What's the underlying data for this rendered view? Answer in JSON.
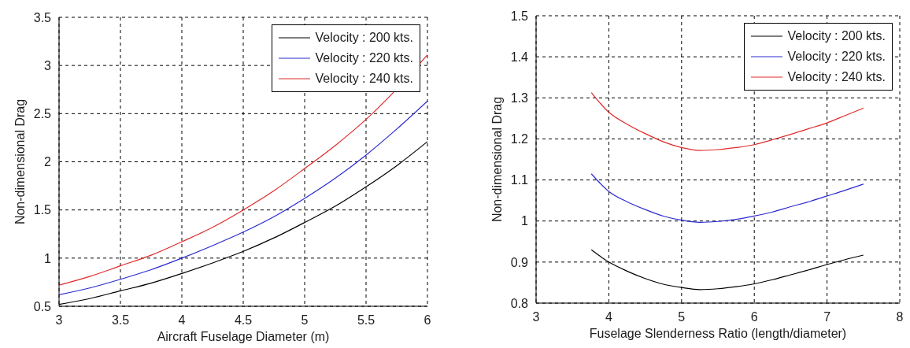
{
  "chart_data": [
    {
      "type": "line",
      "xlabel": "Aircraft Fuselage Diameter (m)",
      "ylabel": "Non-dimensional Drag",
      "x": [
        3,
        3.25,
        3.5,
        3.75,
        4,
        4.25,
        4.5,
        4.75,
        5,
        5.25,
        5.5,
        5.75,
        6
      ],
      "series": [
        {
          "name": "Velocity : 200 kts.",
          "color": "#000000",
          "values": [
            0.52,
            0.58,
            0.66,
            0.74,
            0.84,
            0.95,
            1.07,
            1.21,
            1.37,
            1.54,
            1.74,
            1.96,
            2.21
          ]
        },
        {
          "name": "Velocity : 220 kts.",
          "color": "#2a2ad0",
          "values": [
            0.62,
            0.69,
            0.78,
            0.88,
            1.0,
            1.13,
            1.27,
            1.43,
            1.62,
            1.83,
            2.07,
            2.34,
            2.63
          ]
        },
        {
          "name": "Velocity : 240 kts.",
          "color": "#e02a2a",
          "x": [
            3,
            3.25,
            3.5,
            3.75,
            4,
            4.25,
            4.5,
            4.75,
            5,
            5.25,
            5.5,
            5.7,
            6
          ],
          "values": [
            0.72,
            0.81,
            0.92,
            1.03,
            1.17,
            1.32,
            1.5,
            1.7,
            1.93,
            2.17,
            2.44,
            2.69,
            3.11
          ]
        }
      ],
      "xlim": [
        3,
        6
      ],
      "xticks": [
        3,
        3.5,
        4,
        4.5,
        5,
        5.5,
        6
      ],
      "ylim": [
        0.5,
        3.5
      ],
      "yticks": [
        0.5,
        1,
        1.5,
        2,
        2.5,
        3,
        3.5
      ],
      "grid": true,
      "legend": "top right"
    },
    {
      "type": "line",
      "xlabel": "Fuselage Slenderness Ratio (length/diameter)",
      "ylabel": "Non-dimensional Drag",
      "x": [
        3.76,
        4,
        4.25,
        4.5,
        4.75,
        5,
        5.25,
        5.5,
        5.75,
        6,
        6.25,
        6.5,
        6.75,
        7,
        7.25,
        7.5
      ],
      "series": [
        {
          "name": "Velocity : 200 kts.",
          "color": "#000000",
          "values": [
            0.93,
            0.9,
            0.878,
            0.86,
            0.846,
            0.838,
            0.833,
            0.835,
            0.84,
            0.847,
            0.857,
            0.869,
            0.881,
            0.894,
            0.906,
            0.917
          ]
        },
        {
          "name": "Velocity : 220 kts.",
          "color": "#2a2ad0",
          "values": [
            1.115,
            1.072,
            1.047,
            1.028,
            1.012,
            1.002,
            0.997,
            0.999,
            1.004,
            1.012,
            1.022,
            1.035,
            1.047,
            1.061,
            1.075,
            1.09
          ]
        },
        {
          "name": "Velocity : 240 kts.",
          "color": "#e02a2a",
          "values": [
            1.313,
            1.265,
            1.236,
            1.213,
            1.193,
            1.179,
            1.172,
            1.174,
            1.179,
            1.186,
            1.198,
            1.211,
            1.225,
            1.239,
            1.257,
            1.275
          ]
        }
      ],
      "xlim": [
        3,
        8
      ],
      "xticks": [
        3,
        4,
        5,
        6,
        7,
        8
      ],
      "ylim": [
        0.8,
        1.5
      ],
      "yticks": [
        0.8,
        0.9,
        1,
        1.1,
        1.2,
        1.3,
        1.4,
        1.5
      ],
      "grid": true,
      "legend": "top right"
    }
  ]
}
